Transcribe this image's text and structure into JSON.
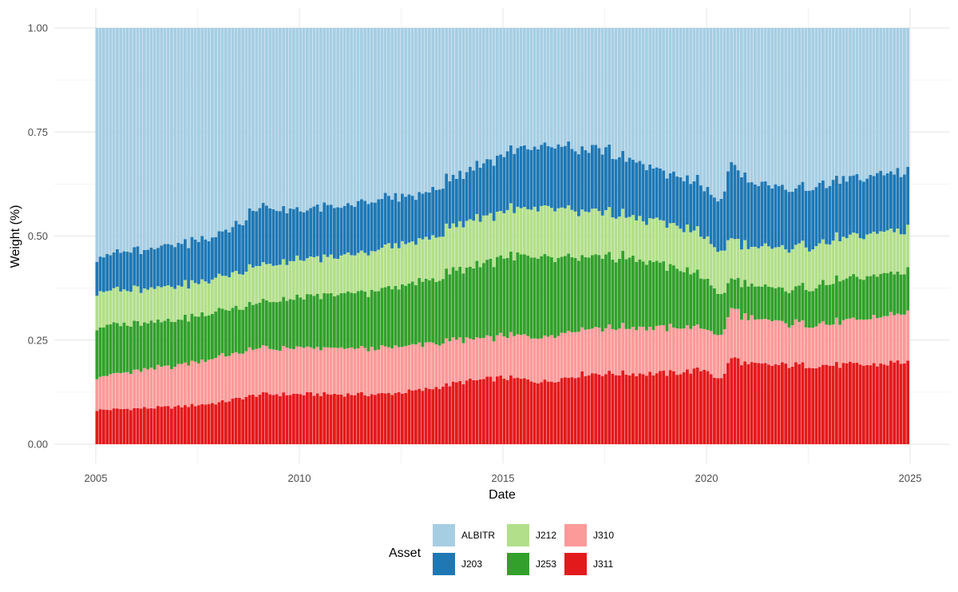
{
  "chart_data": {
    "type": "bar",
    "stacked": true,
    "xlabel": "Date",
    "ylabel": "Weight (%)",
    "xlim": [
      2005.0,
      2025.0
    ],
    "ylim": [
      0.0,
      1.0
    ],
    "x_ticks": [
      2005,
      2010,
      2015,
      2020,
      2025
    ],
    "y_ticks": [
      {
        "value": 0.0,
        "label": "0.00"
      },
      {
        "value": 0.25,
        "label": "0.25"
      },
      {
        "value": 0.5,
        "label": "0.50"
      },
      {
        "value": 0.75,
        "label": "0.75"
      },
      {
        "value": 1.0,
        "label": "1.00"
      }
    ],
    "grid": true,
    "legend_position": "bottom",
    "legend_title": "Asset",
    "bar_frequency": "monthly",
    "x_start": "2005-01",
    "x_end": "2024-12",
    "stack_order_bottom_to_top": [
      "J311",
      "J310",
      "J253",
      "J212",
      "J203",
      "ALBITR"
    ],
    "series": [
      {
        "name": "ALBITR",
        "color": "#A6CEE3",
        "note": "remainder to 1.00",
        "anchors": [
          [
            2005.0,
            0.548
          ],
          [
            2007.0,
            0.52
          ],
          [
            2008.0,
            0.49
          ],
          [
            2009.0,
            0.43
          ],
          [
            2010.0,
            0.45
          ],
          [
            2011.0,
            0.45
          ],
          [
            2012.0,
            0.43
          ],
          [
            2013.0,
            0.4
          ],
          [
            2014.0,
            0.35
          ],
          [
            2015.0,
            0.3
          ],
          [
            2016.0,
            0.28
          ],
          [
            2017.0,
            0.29
          ],
          [
            2018.0,
            0.31
          ],
          [
            2019.0,
            0.35
          ],
          [
            2020.0,
            0.38
          ],
          [
            2020.3,
            0.43
          ],
          [
            2020.6,
            0.32
          ],
          [
            2021.0,
            0.37
          ],
          [
            2022.0,
            0.39
          ],
          [
            2023.0,
            0.37
          ],
          [
            2024.0,
            0.36
          ],
          [
            2025.0,
            0.34
          ]
        ]
      },
      {
        "name": "J203",
        "color": "#1F78B4",
        "anchors": [
          [
            2005.0,
            0.085
          ],
          [
            2007.0,
            0.1
          ],
          [
            2008.0,
            0.1
          ],
          [
            2009.0,
            0.14
          ],
          [
            2010.0,
            0.12
          ],
          [
            2011.0,
            0.12
          ],
          [
            2012.0,
            0.12
          ],
          [
            2013.0,
            0.11
          ],
          [
            2014.0,
            0.12
          ],
          [
            2015.0,
            0.14
          ],
          [
            2016.0,
            0.15
          ],
          [
            2017.0,
            0.15
          ],
          [
            2018.0,
            0.14
          ],
          [
            2019.0,
            0.12
          ],
          [
            2020.0,
            0.12
          ],
          [
            2020.3,
            0.12
          ],
          [
            2020.6,
            0.18
          ],
          [
            2021.0,
            0.16
          ],
          [
            2022.0,
            0.14
          ],
          [
            2023.0,
            0.14
          ],
          [
            2024.0,
            0.14
          ],
          [
            2025.0,
            0.14
          ]
        ]
      },
      {
        "name": "J212",
        "color": "#B2DF8A",
        "anchors": [
          [
            2005.0,
            0.085
          ],
          [
            2007.0,
            0.08
          ],
          [
            2008.0,
            0.08
          ],
          [
            2009.0,
            0.09
          ],
          [
            2010.0,
            0.09
          ],
          [
            2011.0,
            0.09
          ],
          [
            2012.0,
            0.1
          ],
          [
            2013.0,
            0.1
          ],
          [
            2014.0,
            0.11
          ],
          [
            2015.0,
            0.11
          ],
          [
            2016.0,
            0.12
          ],
          [
            2017.0,
            0.11
          ],
          [
            2018.0,
            0.1
          ],
          [
            2019.0,
            0.1
          ],
          [
            2020.0,
            0.1
          ],
          [
            2020.3,
            0.1
          ],
          [
            2020.6,
            0.1
          ],
          [
            2021.0,
            0.09
          ],
          [
            2022.0,
            0.1
          ],
          [
            2023.0,
            0.1
          ],
          [
            2024.0,
            0.1
          ],
          [
            2025.0,
            0.1
          ]
        ]
      },
      {
        "name": "J253",
        "color": "#33A02C",
        "anchors": [
          [
            2005.0,
            0.12
          ],
          [
            2007.0,
            0.11
          ],
          [
            2008.0,
            0.11
          ],
          [
            2009.0,
            0.11
          ],
          [
            2010.0,
            0.12
          ],
          [
            2011.0,
            0.13
          ],
          [
            2012.0,
            0.14
          ],
          [
            2013.0,
            0.15
          ],
          [
            2014.0,
            0.17
          ],
          [
            2015.0,
            0.19
          ],
          [
            2016.0,
            0.19
          ],
          [
            2017.0,
            0.17
          ],
          [
            2018.0,
            0.17
          ],
          [
            2019.0,
            0.15
          ],
          [
            2020.0,
            0.12
          ],
          [
            2020.3,
            0.1
          ],
          [
            2020.6,
            0.07
          ],
          [
            2021.0,
            0.08
          ],
          [
            2022.0,
            0.08
          ],
          [
            2023.0,
            0.1
          ],
          [
            2024.0,
            0.1
          ],
          [
            2025.0,
            0.1
          ]
        ]
      },
      {
        "name": "J310",
        "color": "#FB9A99",
        "anchors": [
          [
            2005.0,
            0.08
          ],
          [
            2007.0,
            0.1
          ],
          [
            2008.0,
            0.11
          ],
          [
            2009.0,
            0.11
          ],
          [
            2010.0,
            0.11
          ],
          [
            2011.0,
            0.11
          ],
          [
            2012.0,
            0.11
          ],
          [
            2013.0,
            0.11
          ],
          [
            2014.0,
            0.1
          ],
          [
            2015.0,
            0.1
          ],
          [
            2016.0,
            0.11
          ],
          [
            2017.0,
            0.11
          ],
          [
            2018.0,
            0.11
          ],
          [
            2019.0,
            0.11
          ],
          [
            2020.0,
            0.1
          ],
          [
            2020.3,
            0.1
          ],
          [
            2020.6,
            0.12
          ],
          [
            2021.0,
            0.11
          ],
          [
            2022.0,
            0.1
          ],
          [
            2023.0,
            0.1
          ],
          [
            2024.0,
            0.11
          ],
          [
            2025.0,
            0.12
          ]
        ]
      },
      {
        "name": "J311",
        "color": "#E31A1C",
        "anchors": [
          [
            2005.0,
            0.082
          ],
          [
            2007.0,
            0.09
          ],
          [
            2008.0,
            0.1
          ],
          [
            2009.0,
            0.12
          ],
          [
            2010.0,
            0.12
          ],
          [
            2011.0,
            0.12
          ],
          [
            2012.0,
            0.12
          ],
          [
            2013.0,
            0.13
          ],
          [
            2014.0,
            0.15
          ],
          [
            2015.0,
            0.16
          ],
          [
            2016.0,
            0.15
          ],
          [
            2017.0,
            0.17
          ],
          [
            2018.0,
            0.17
          ],
          [
            2019.0,
            0.17
          ],
          [
            2020.0,
            0.18
          ],
          [
            2020.3,
            0.15
          ],
          [
            2020.6,
            0.21
          ],
          [
            2021.0,
            0.19
          ],
          [
            2022.0,
            0.19
          ],
          [
            2023.0,
            0.19
          ],
          [
            2024.0,
            0.19
          ],
          [
            2025.0,
            0.2
          ]
        ]
      }
    ],
    "legend": [
      {
        "name": "ALBITR",
        "color": "#A6CEE3"
      },
      {
        "name": "J203",
        "color": "#1F78B4"
      },
      {
        "name": "J212",
        "color": "#B2DF8A"
      },
      {
        "name": "J253",
        "color": "#33A02C"
      },
      {
        "name": "J310",
        "color": "#FB9A99"
      },
      {
        "name": "J311",
        "color": "#E31A1C"
      }
    ]
  }
}
